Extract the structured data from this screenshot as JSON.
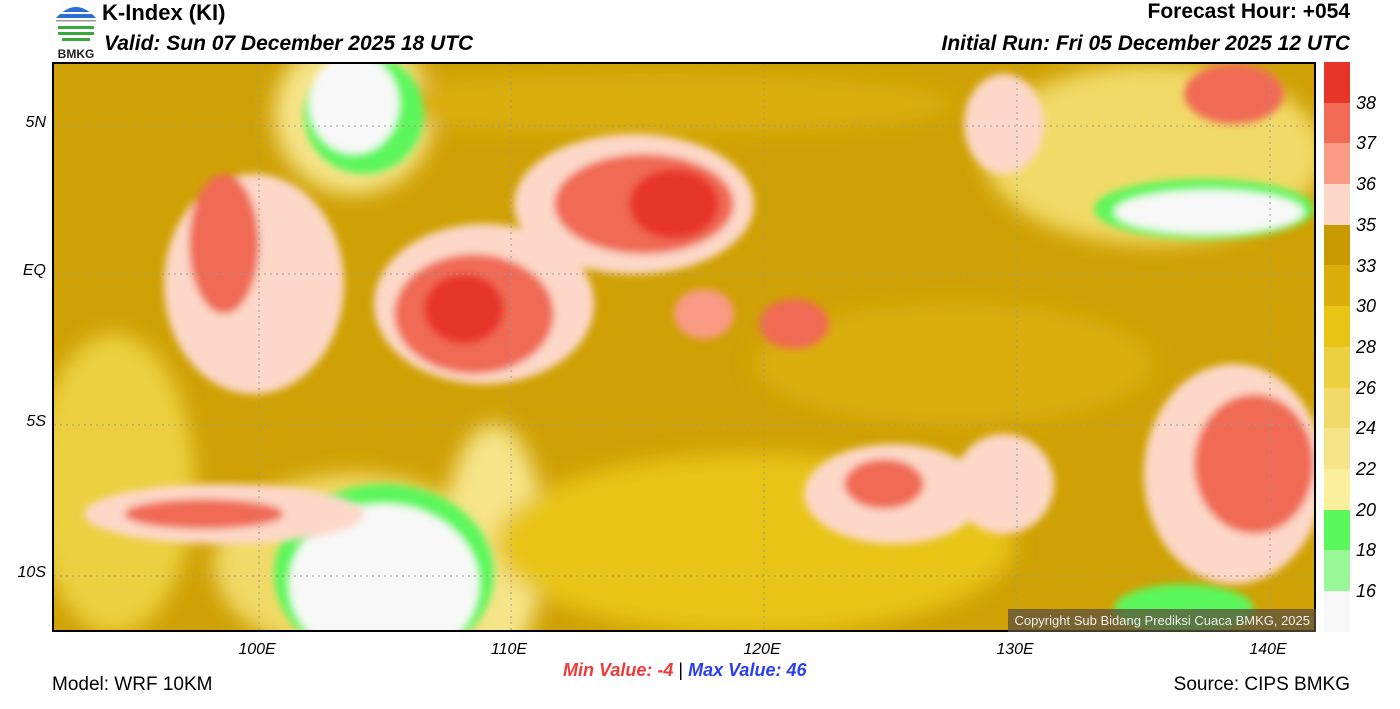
{
  "header": {
    "logo_text": "BMKG",
    "title": "K-Index (KI)",
    "valid": "Valid: Sun 07 December 2025 18 UTC",
    "forecast_hour": "Forecast Hour: +054",
    "initial_run": "Initial Run: Fri 05 December 2025 12 UTC"
  },
  "map": {
    "lat_ticks": [
      "5N",
      "EQ",
      "5S",
      "10S"
    ],
    "lon_ticks": [
      "100E",
      "110E",
      "120E",
      "130E",
      "140E"
    ],
    "copyright": "Copyright Sub Bidang Prediksi Cuaca BMKG, 2025"
  },
  "colorbar": {
    "labels": [
      "38",
      "37",
      "36",
      "35",
      "33",
      "30",
      "28",
      "26",
      "24",
      "22",
      "20",
      "18",
      "16"
    ],
    "colors": [
      "#e8352a",
      "#f06a55",
      "#f99a85",
      "#fdd8c8",
      "#c99a00",
      "#dbae0a",
      "#e8c414",
      "#ecd040",
      "#f2da68",
      "#f6e488",
      "#fbee9c",
      "#5cf75c",
      "#98f898",
      "#f8f8f8"
    ]
  },
  "footer": {
    "min_label": "Min Value:  -4",
    "separator": "|",
    "max_label": "Max Value:  46",
    "model": "Model: WRF 10KM",
    "source": "Source: CIPS BMKG"
  }
}
